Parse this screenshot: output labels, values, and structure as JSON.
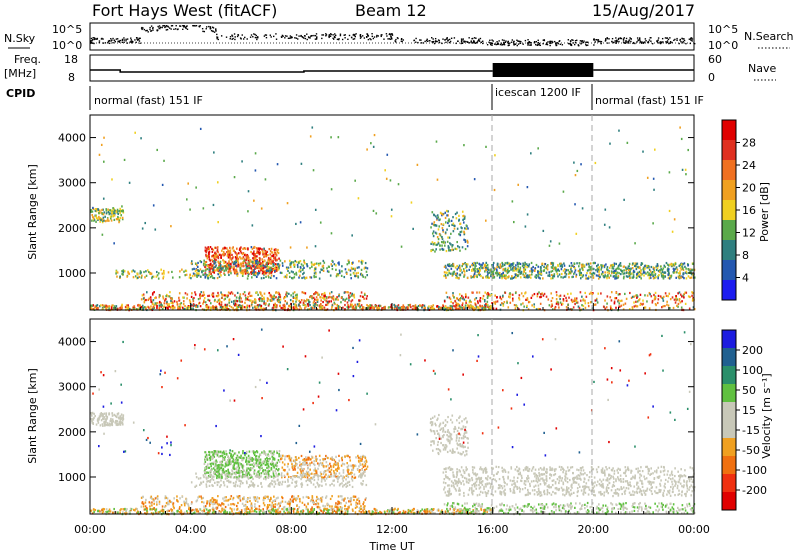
{
  "header": {
    "radar": "Fort Hays West (fitACF)",
    "beam": "Beam 12",
    "date": "15/Aug/2017"
  },
  "strip_labels": {
    "nsky": "N.Sky",
    "nsearch": "N.Search",
    "freq_line1": "Freq.",
    "freq_line2": "[MHz]",
    "nave": "Nave",
    "cpid": "CPID",
    "nsky_ticks": [
      "10^5",
      "10^0"
    ],
    "nsearch_ticks": [
      "10^5",
      "10^0"
    ],
    "freq_ticks": [
      "18",
      "8"
    ],
    "nave_ticks": [
      "60",
      "0"
    ]
  },
  "cpid_segments": [
    {
      "label": "normal (fast) 151 IF",
      "start_hour": 0
    },
    {
      "label": "icescan 1200 IF",
      "start_hour": 16
    },
    {
      "label": "normal (fast) 151 IF",
      "start_hour": 20
    }
  ],
  "colors": {
    "power": [
      "#1c1cf0",
      "#2458b0",
      "#2f7f7f",
      "#5aa94a",
      "#f0d020",
      "#f0a020",
      "#f07020",
      "#e03020",
      "#e00000"
    ],
    "velocity": [
      "#e00000",
      "#f03010",
      "#f07010",
      "#f0a020",
      "#c8c8b8",
      "#c8c8b8",
      "#60c040",
      "#2a8f6a",
      "#206090",
      "#1c1ce0"
    ]
  },
  "chart_data": [
    {
      "type": "heatmap",
      "name": "power-panel",
      "ylabel": "Slant Range [km]",
      "xlim": [
        0,
        24
      ],
      "ylim": [
        180,
        4500
      ],
      "yticks": [
        "1000",
        "2000",
        "3000",
        "4000"
      ],
      "colorbar_label": "Power [dB]",
      "colorbar_ticks": [
        "4",
        "8",
        "12",
        "16",
        "20",
        "24",
        "28"
      ]
    },
    {
      "type": "heatmap",
      "name": "velocity-panel",
      "ylabel": "Slant Range [km]",
      "xlabel": "Time UT",
      "xlim": [
        0,
        24
      ],
      "ylim": [
        180,
        4500
      ],
      "xticks": [
        "00:00",
        "04:00",
        "08:00",
        "12:00",
        "16:00",
        "20:00",
        "00:00"
      ],
      "yticks": [
        "1000",
        "2000",
        "3000",
        "4000"
      ],
      "colorbar_label": "Velocity [m s⁻¹]",
      "colorbar_ticks": [
        "-200",
        "-100",
        "-50",
        "-15",
        "15",
        "50",
        "100",
        "200"
      ]
    }
  ]
}
